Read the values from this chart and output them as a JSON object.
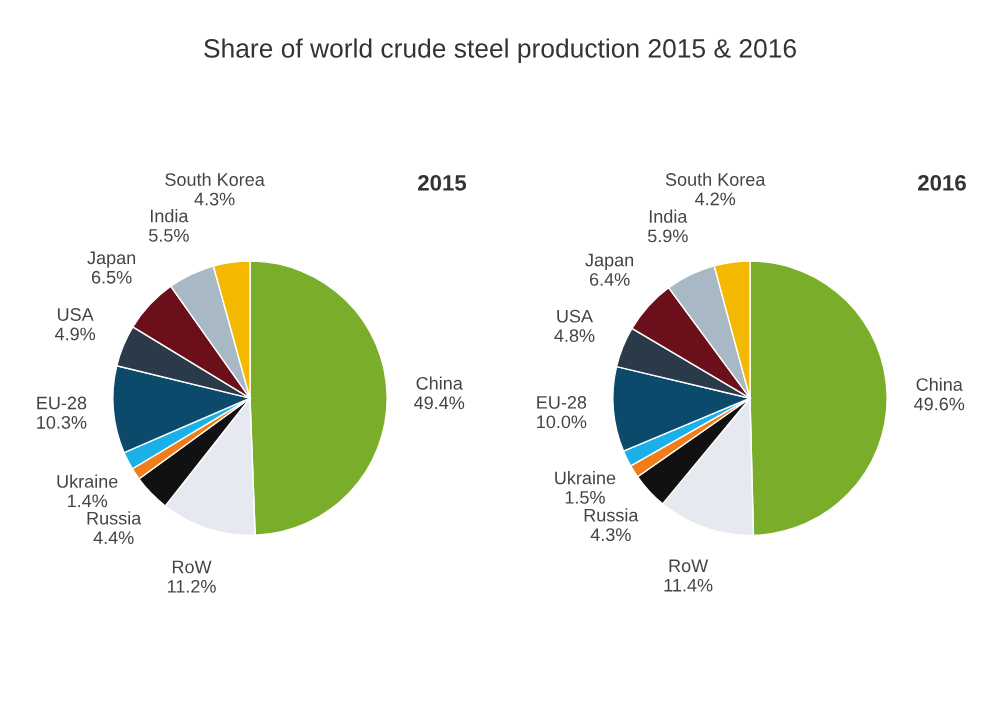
{
  "chart_data": [
    {
      "type": "pie",
      "title": "Share of world crude steel production 2015 & 2016",
      "subtitle": "2015",
      "categories": [
        "China",
        "RoW",
        "Russia",
        "Ukraine",
        null,
        "EU-28",
        "USA",
        "Japan",
        "India",
        "South Korea"
      ],
      "values": [
        49.4,
        11.2,
        4.4,
        1.4,
        2.1,
        10.3,
        4.9,
        6.5,
        5.5,
        4.3
      ],
      "value_labels": [
        "49.4%",
        "11.2%",
        "4.4%",
        "1.4%",
        null,
        "10.3%",
        "4.9%",
        "6.5%",
        "5.5%",
        "4.3%"
      ],
      "colors": [
        "#7aad2a",
        "#e6eaf0",
        "#111111",
        "#f07d1a",
        "#1ab0e8",
        "#0b4a6b",
        "#2a3a48",
        "#6b0f1a",
        "#a8b8c4",
        "#f5b800"
      ]
    },
    {
      "type": "pie",
      "subtitle": "2016",
      "categories": [
        "China",
        "RoW",
        "Russia",
        "Ukraine",
        null,
        "EU-28",
        "USA",
        "Japan",
        "India",
        "South Korea"
      ],
      "values": [
        49.6,
        11.4,
        4.3,
        1.5,
        1.9,
        10.0,
        4.8,
        6.4,
        5.9,
        4.2
      ],
      "value_labels": [
        "49.6%",
        "11.4%",
        "4.3%",
        "1.5%",
        null,
        "10.0%",
        "4.8%",
        "6.4%",
        "5.9%",
        "4.2%"
      ],
      "colors": [
        "#7aad2a",
        "#e6eaf0",
        "#111111",
        "#f07d1a",
        "#1ab0e8",
        "#0b4a6b",
        "#2a3a48",
        "#6b0f1a",
        "#a8b8c4",
        "#f5b800"
      ]
    }
  ]
}
